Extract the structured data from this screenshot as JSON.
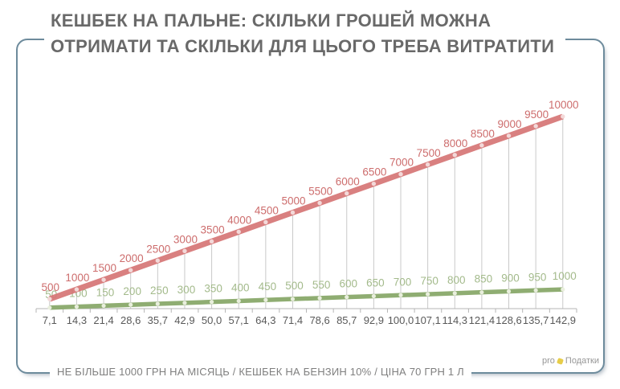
{
  "title": {
    "line1": "КЕШБЕК НА ПАЛЬНЕ: СКІЛЬКИ ГРОШЕЙ МОЖНА",
    "line2": "ОТРИМАТИ ТА СКІЛЬКИ ДЛЯ ЦЬОГО ТРЕБА ВИТРАТИТИ"
  },
  "footnote": "НЕ БІЛЬШЕ 1000 ГРН НА МІСЯЦЬ / КЕШБЕК НА БЕНЗИН 10% / ЦІНА 70 ГРН 1 Л",
  "logo": {
    "prefix": "pro",
    "name": "Податки",
    "icon": "yellow-mark-icon",
    "icon_color": "#e7cd49"
  },
  "colors": {
    "title_text": "#696969",
    "frame_border": "#6d8b9c",
    "gridline": "#c9c9c9",
    "axis": "#b5b5b5",
    "axis_label": "#595959",
    "footnote_text": "#7f7f7f"
  },
  "chart_data": {
    "type": "line",
    "title": "КЕШБЕК НА ПАЛЬНЕ: СКІЛЬКИ ГРОШЕЙ МОЖНА ОТРИМАТИ ТА СКІЛЬКИ ДЛЯ ЦЬОГО ТРЕБА ВИТРАТИТИ",
    "x_labels": [
      "7,1",
      "14,3",
      "21,4",
      "28,6",
      "35,7",
      "42,9",
      "50,0",
      "57,1",
      "64,3",
      "71,4",
      "78,6",
      "85,7",
      "92,9",
      "100,0",
      "107,1",
      "114,3",
      "121,4",
      "128,6",
      "135,7",
      "142,9"
    ],
    "xlabel": "",
    "ylabel": "",
    "ylim": [
      0,
      10000
    ],
    "grid": "vertical lines from baseline up to red series points",
    "legend": "none",
    "series": [
      {
        "id": "spend-uah-red",
        "color": "#d67575",
        "label_color": "#cd6d6d",
        "marker_color": "#f3d9d9",
        "values": [
          500,
          1000,
          1500,
          2000,
          2500,
          3000,
          3500,
          4000,
          4500,
          5000,
          5500,
          6000,
          6500,
          7000,
          7500,
          8000,
          8500,
          9000,
          9500,
          10000
        ]
      },
      {
        "id": "cashback-uah-green",
        "color": "#8fad72",
        "label_color": "#a3ba8b",
        "marker_color": "#e9efdd",
        "values": [
          50,
          100,
          150,
          200,
          250,
          300,
          350,
          400,
          450,
          500,
          550,
          600,
          650,
          700,
          750,
          800,
          850,
          900,
          950,
          1000
        ]
      }
    ]
  }
}
